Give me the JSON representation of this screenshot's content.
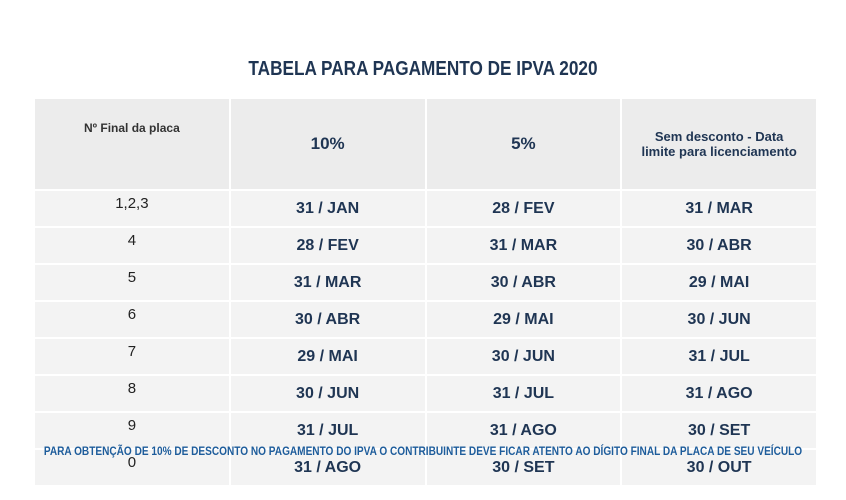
{
  "header": {
    "title": "TABELA PARA PAGAMENTO DE IPVA 2020"
  },
  "table": {
    "columns": [
      "Nº Final da placa",
      "10%",
      "5%",
      "Sem desconto - Data limite para licenciamento"
    ],
    "rows": [
      [
        "1,2,3",
        "31 / JAN",
        "28 / FEV",
        "31 / MAR"
      ],
      [
        "4",
        "28 / FEV",
        "31 / MAR",
        "30 / ABR"
      ],
      [
        "5",
        "31 / MAR",
        "30 / ABR",
        "29 / MAI"
      ],
      [
        "6",
        "30 / ABR",
        "29 / MAI",
        "30 / JUN"
      ],
      [
        "7",
        "29 / MAI",
        "30 / JUN",
        "31 / JUL"
      ],
      [
        "8",
        "30 / JUN",
        "31 / JUL",
        "31 / AGO"
      ],
      [
        "9",
        "31 / JUL",
        "31 / AGO",
        "30 / SET"
      ],
      [
        "0",
        "31 / AGO",
        "30 / SET",
        "30 / OUT"
      ]
    ]
  },
  "footer": "PARA OBTENÇÃO DE 10% DE DESCONTO NO PAGAMENTO DO IPVA O CONTRIBUINTE DEVE FICAR ATENTO AO DÍGITO FINAL DA PLACA DE SEU VEÍCULO"
}
